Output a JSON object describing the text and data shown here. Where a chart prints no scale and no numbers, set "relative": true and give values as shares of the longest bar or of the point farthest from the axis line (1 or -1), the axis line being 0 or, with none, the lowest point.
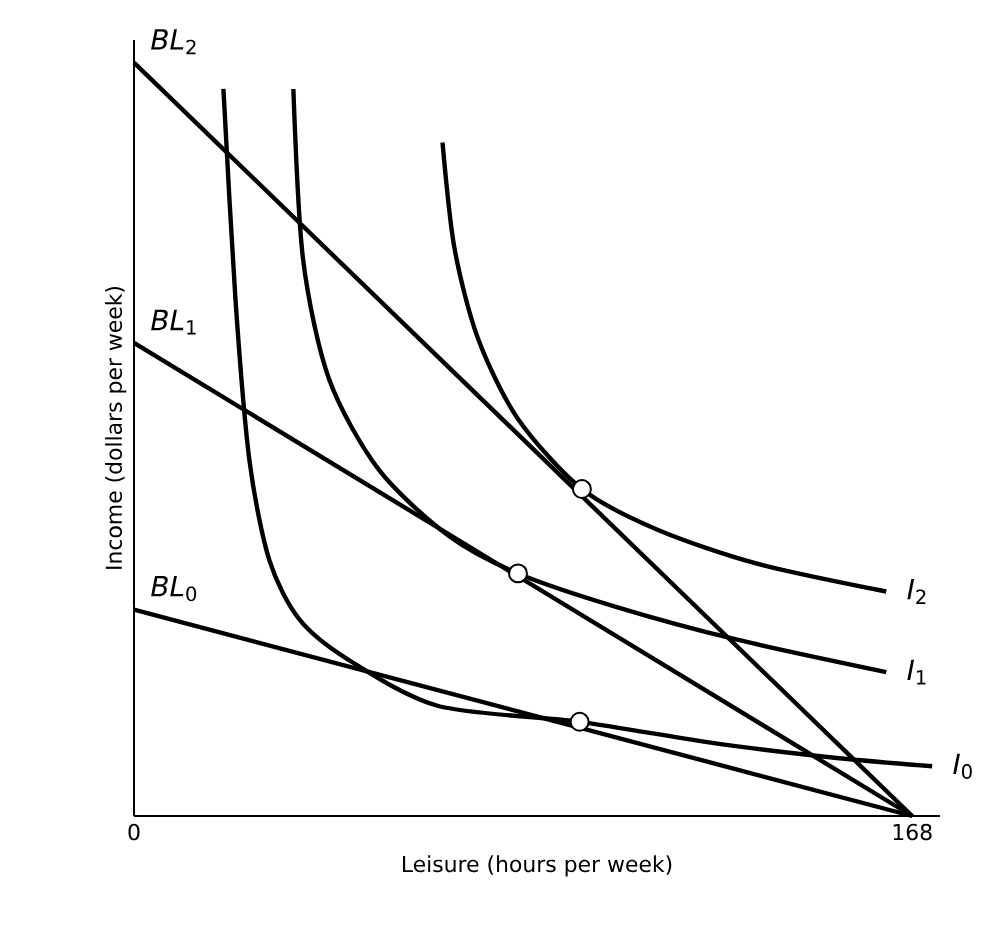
{
  "chart_data": {
    "type": "line",
    "relative": true,
    "xlabel": "Leisure (hours per week)",
    "ylabel": "Income (dollars per week)",
    "xlim": [
      0,
      174
    ],
    "xticks": [
      0,
      168
    ],
    "series": [
      {
        "name": "*BL*$_{2}$",
        "color": "#000000",
        "x": [
          0,
          168
        ],
        "values": [
          1,
          0
        ]
      },
      {
        "name": "*BL*$_{1}$",
        "color": "#000000",
        "x": [
          0,
          168
        ],
        "values": [
          0.628,
          0
        ]
      },
      {
        "name": "*BL*$_{0}$",
        "color": "#000000",
        "x": [
          0,
          168
        ],
        "values": [
          0.274,
          0
        ]
      },
      {
        "name": "*I*$_{0}$",
        "color": "#000000",
        "x": [
          19.3,
          21.9,
          24.9,
          29.2,
          35.7,
          46.4,
          65.7,
          96.2,
          125.9,
          151.7,
          172.3
        ],
        "values": [
          0.965,
          0.686,
          0.473,
          0.34,
          0.261,
          0.207,
          0.146,
          0.125,
          0.096,
          0.077,
          0.066
        ]
      },
      {
        "name": "*I*$_{1}$",
        "color": "#000000",
        "x": [
          34.4,
          36.5,
          42.1,
          52.8,
          67.9,
          82.9,
          104.4,
          130.2,
          162.4
        ],
        "values": [
          0.965,
          0.739,
          0.58,
          0.46,
          0.372,
          0.322,
          0.277,
          0.234,
          0.191
        ]
      },
      {
        "name": "*I*$_{2}$",
        "color": "#000000",
        "x": [
          66.6,
          69.2,
          74.3,
          82.9,
          96.7,
          113.0,
          134.5,
          162.4
        ],
        "values": [
          0.894,
          0.753,
          0.633,
          0.527,
          0.434,
          0.38,
          0.335,
          0.298
        ]
      },
      {
        "type": "scatter",
        "marker": "circle",
        "color": "#000000",
        "x": [
          96.7,
          82.9,
          96.2
        ],
        "values": [
          0.434,
          0.322,
          0.125
        ]
      }
    ]
  }
}
